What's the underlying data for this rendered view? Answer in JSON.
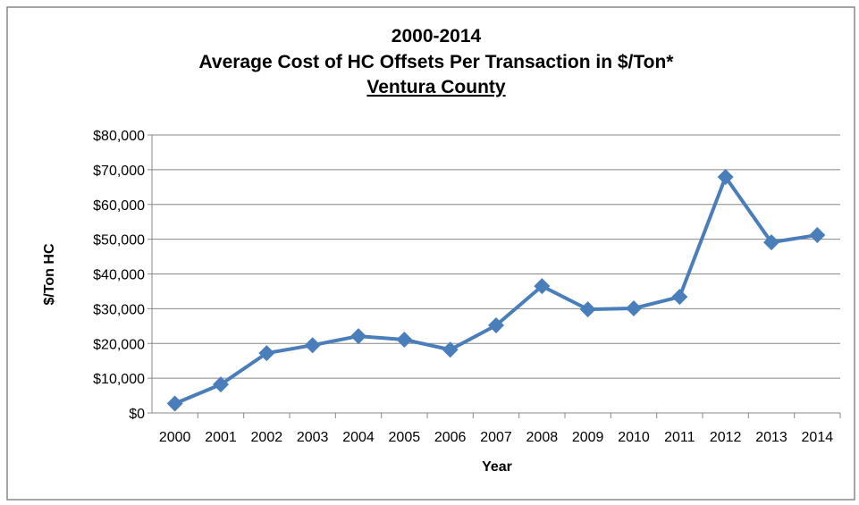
{
  "chart_data": {
    "type": "line",
    "title": [
      "2000-2014",
      "Average Cost of HC Offsets Per Transaction in $/Ton*",
      "Ventura County"
    ],
    "x_label": "Year",
    "y_label": "$/Ton HC",
    "categories": [
      "2000",
      "2001",
      "2002",
      "2003",
      "2004",
      "2005",
      "2006",
      "2007",
      "2008",
      "2009",
      "2010",
      "2011",
      "2012",
      "2013",
      "2014"
    ],
    "series": [
      {
        "name": "Average Cost",
        "color": "#4a7ebb",
        "values": [
          2700,
          8200,
          17200,
          19500,
          22100,
          21100,
          18200,
          25200,
          36500,
          29800,
          30100,
          33400,
          67900,
          49100,
          51200
        ]
      }
    ],
    "ylim": [
      0,
      80000
    ],
    "yticks": [
      {
        "value": 0,
        "label": "$0"
      },
      {
        "value": 10000,
        "label": "$10,000"
      },
      {
        "value": 20000,
        "label": "$20,000"
      },
      {
        "value": 30000,
        "label": "$30,000"
      },
      {
        "value": 40000,
        "label": "$40,000"
      },
      {
        "value": 50000,
        "label": "$50,000"
      },
      {
        "value": 60000,
        "label": "$60,000"
      },
      {
        "value": 70000,
        "label": "$70,000"
      },
      {
        "value": 80000,
        "label": "$80,000"
      }
    ],
    "grid": true
  }
}
